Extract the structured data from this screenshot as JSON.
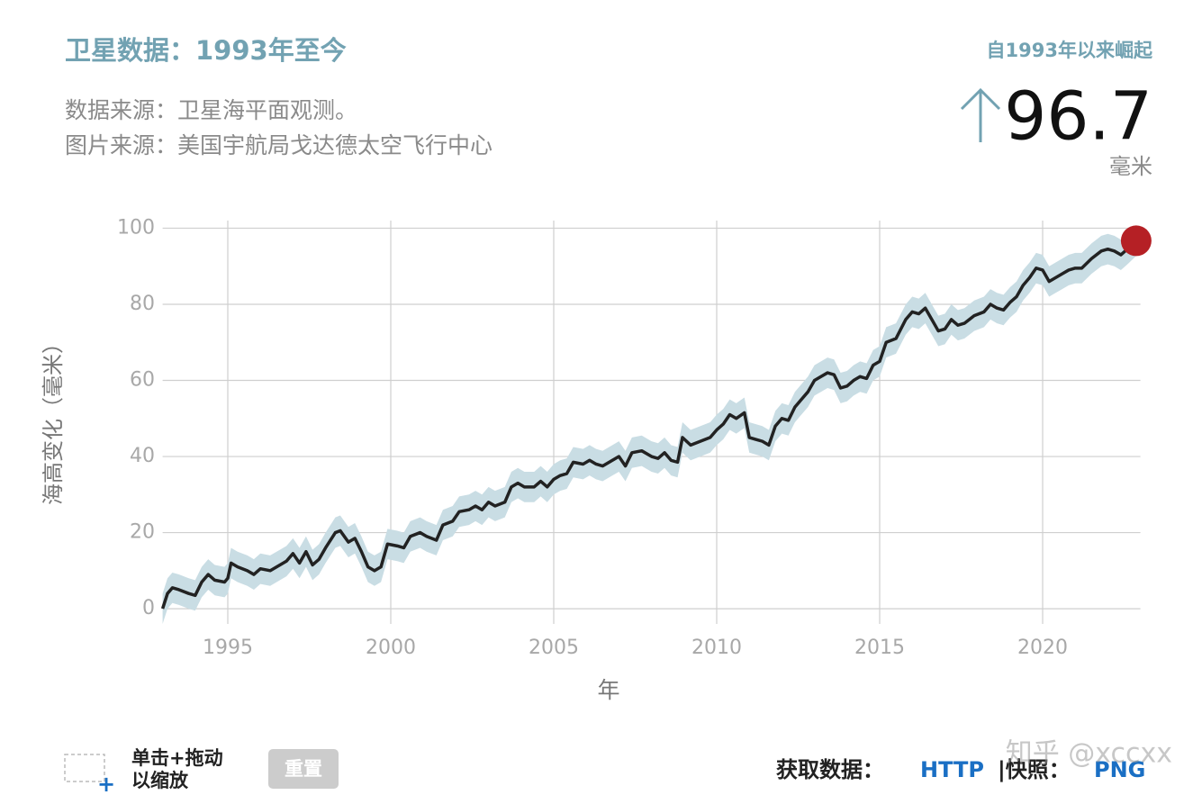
{
  "header": {
    "title": "卫星数据：1993年至今",
    "source": "数据来源：卫星海平面观测。",
    "credit": "图片来源：美国宇航局戈达德太空飞行中心"
  },
  "chart_data": {
    "type": "line",
    "headline": {
      "label": "自1993年以来崛起",
      "value": 96.7,
      "unit": "毫米"
    },
    "ylabel": "海高变化（毫米）",
    "xlabel": "年",
    "xlim": [
      1993,
      2023
    ],
    "ylim": [
      -4,
      102
    ],
    "xticks": [
      1995,
      2000,
      2005,
      2010,
      2015,
      2020
    ],
    "yticks": [
      0,
      20,
      40,
      60,
      80,
      100
    ],
    "grid": true,
    "color": "#222222",
    "band_color": "#c9dde4",
    "marker_color": "#b52025",
    "uncertainty": 4,
    "x": [
      1993.0,
      1993.15,
      1993.3,
      1993.5,
      1993.8,
      1994.0,
      1994.2,
      1994.4,
      1994.6,
      1994.9,
      1995.0,
      1995.1,
      1995.3,
      1995.6,
      1995.8,
      1996.0,
      1996.3,
      1996.6,
      1996.8,
      1997.0,
      1997.2,
      1997.4,
      1997.6,
      1997.8,
      1998.0,
      1998.3,
      1998.45,
      1998.7,
      1998.9,
      1999.1,
      1999.3,
      1999.5,
      1999.7,
      1999.9,
      2000.2,
      2000.4,
      2000.6,
      2000.9,
      2001.1,
      2001.4,
      2001.6,
      2001.9,
      2002.1,
      2002.4,
      2002.6,
      2002.8,
      2003.0,
      2003.2,
      2003.5,
      2003.7,
      2003.9,
      2004.1,
      2004.4,
      2004.6,
      2004.8,
      2005.0,
      2005.2,
      2005.4,
      2005.6,
      2005.9,
      2006.1,
      2006.3,
      2006.5,
      2006.8,
      2007.0,
      2007.2,
      2007.4,
      2007.7,
      2008.0,
      2008.2,
      2008.4,
      2008.6,
      2008.8,
      2008.95,
      2009.2,
      2009.5,
      2009.8,
      2010.0,
      2010.2,
      2010.4,
      2010.6,
      2010.85,
      2011.0,
      2011.2,
      2011.4,
      2011.6,
      2011.8,
      2012.0,
      2012.2,
      2012.4,
      2012.6,
      2012.8,
      2013.0,
      2013.2,
      2013.4,
      2013.6,
      2013.8,
      2014.0,
      2014.2,
      2014.4,
      2014.6,
      2014.8,
      2015.0,
      2015.2,
      2015.5,
      2015.8,
      2016.0,
      2016.2,
      2016.4,
      2016.6,
      2016.8,
      2017.0,
      2017.2,
      2017.4,
      2017.6,
      2017.9,
      2018.2,
      2018.4,
      2018.6,
      2018.8,
      2019.0,
      2019.2,
      2019.4,
      2019.6,
      2019.8,
      2020.0,
      2020.2,
      2020.4,
      2020.6,
      2020.8,
      2021.0,
      2021.2,
      2021.5,
      2021.8,
      2022.0,
      2022.2,
      2022.4,
      2022.6,
      2022.87
    ],
    "values": [
      0,
      4,
      5.5,
      5,
      4,
      3.5,
      7,
      9,
      7.5,
      7,
      8,
      12,
      11,
      10,
      9,
      10.5,
      10,
      11.5,
      12.5,
      14.5,
      12,
      15,
      11.5,
      13,
      16,
      20,
      20.5,
      17.5,
      18.5,
      15,
      11,
      10,
      11,
      17,
      16.5,
      16,
      19,
      20,
      19,
      18,
      22,
      23,
      25.5,
      26,
      27,
      26,
      28,
      27,
      28,
      32,
      33,
      32,
      32,
      33.5,
      32,
      34,
      35,
      35.5,
      38.5,
      38,
      39,
      38,
      37.5,
      39,
      40,
      37.5,
      41,
      41.5,
      40,
      39.5,
      41,
      39,
      38.5,
      45,
      43,
      44,
      45,
      47,
      48.5,
      51,
      50,
      51.5,
      45,
      44.5,
      44,
      43,
      48,
      50,
      49.5,
      53,
      55,
      57,
      60,
      61,
      62,
      61.5,
      58,
      58.5,
      60,
      61,
      60.5,
      64,
      65,
      70,
      71,
      76,
      78,
      77.5,
      79,
      76,
      73,
      73.5,
      76,
      74.5,
      75,
      77,
      78,
      80,
      79,
      78.5,
      80.5,
      82,
      85,
      87,
      89.5,
      89,
      86,
      87,
      88,
      89,
      89.5,
      89.5,
      92,
      94,
      94.5,
      94,
      93,
      94.5,
      96.7
    ]
  },
  "controls": {
    "zoom_line1": "单击+拖动",
    "zoom_line2": "以缩放",
    "reset": "重置",
    "get_data": "获取数据：",
    "http": "HTTP",
    "snapshot": "|快照：",
    "png": "PNG"
  },
  "watermark": "知乎 @xccxx"
}
